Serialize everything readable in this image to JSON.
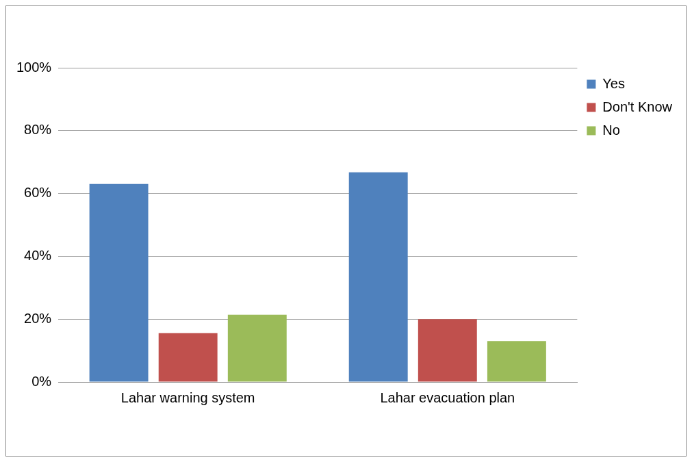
{
  "chart_data": {
    "type": "bar",
    "categories": [
      "Lahar warning system",
      "Lahar evacuation plan"
    ],
    "series": [
      {
        "name": "Yes",
        "color": "#4f81bd",
        "values": [
          63,
          66.7
        ]
      },
      {
        "name": "Don't Know",
        "color": "#c0504d",
        "values": [
          15.5,
          20
        ]
      },
      {
        "name": "No",
        "color": "#9bbb59",
        "values": [
          21.4,
          13
        ]
      }
    ],
    "ylim": [
      0,
      100
    ],
    "yticks": [
      {
        "value": 0,
        "label": "0%"
      },
      {
        "value": 20,
        "label": "20%"
      },
      {
        "value": 40,
        "label": "40%"
      },
      {
        "value": 60,
        "label": "60%"
      },
      {
        "value": 80,
        "label": "80%"
      },
      {
        "value": 100,
        "label": "100%"
      }
    ],
    "grid": "y",
    "legend": "top right"
  }
}
